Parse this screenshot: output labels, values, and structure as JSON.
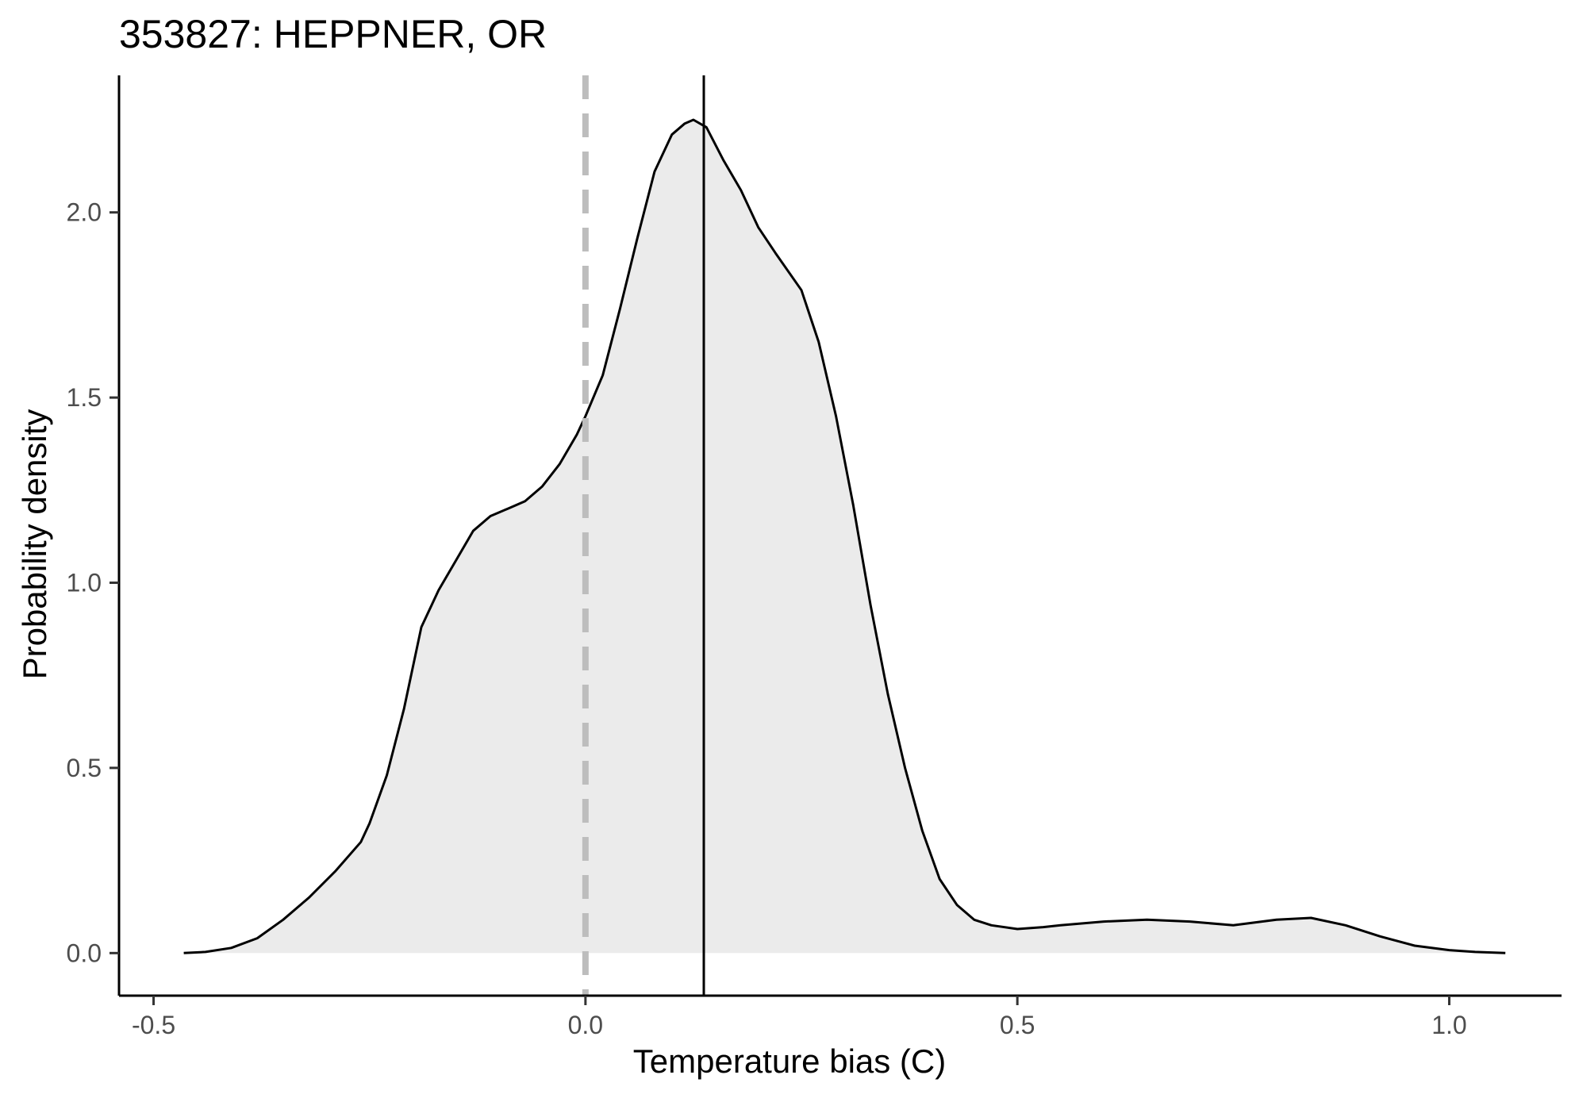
{
  "chart_data": {
    "type": "area",
    "title": "353827: HEPPNER, OR",
    "xlabel": "Temperature bias (C)",
    "ylabel": "Probability density",
    "xlim": [
      -0.54,
      1.13
    ],
    "ylim": [
      -0.115,
      2.37
    ],
    "x_ticks": [
      "-0.5",
      "0.0",
      "0.5",
      "1.0"
    ],
    "y_ticks": [
      "0.0",
      "0.5",
      "1.0",
      "1.5",
      "2.0"
    ],
    "grid": false,
    "reference_lines": [
      {
        "x": 0.0,
        "style": "dashed",
        "color": "#bdbdbd"
      },
      {
        "x": 0.137,
        "style": "solid",
        "color": "#000000"
      }
    ],
    "series": [
      {
        "fill": "#ebebeb",
        "stroke": "#000000",
        "x": [
          -0.465,
          -0.44,
          -0.41,
          -0.38,
          -0.35,
          -0.32,
          -0.29,
          -0.26,
          -0.25,
          -0.23,
          -0.21,
          -0.19,
          -0.17,
          -0.15,
          -0.13,
          -0.11,
          -0.09,
          -0.07,
          -0.05,
          -0.03,
          -0.01,
          0.0,
          0.02,
          0.04,
          0.06,
          0.08,
          0.1,
          0.115,
          0.125,
          0.14,
          0.16,
          0.18,
          0.2,
          0.22,
          0.25,
          0.27,
          0.29,
          0.31,
          0.33,
          0.35,
          0.37,
          0.39,
          0.41,
          0.43,
          0.45,
          0.47,
          0.5,
          0.53,
          0.55,
          0.6,
          0.65,
          0.7,
          0.75,
          0.8,
          0.84,
          0.88,
          0.92,
          0.96,
          1.0,
          1.03,
          1.065
        ],
        "y": [
          0.0,
          0.003,
          0.014,
          0.04,
          0.09,
          0.15,
          0.22,
          0.3,
          0.35,
          0.48,
          0.66,
          0.88,
          0.98,
          1.06,
          1.14,
          1.18,
          1.2,
          1.22,
          1.26,
          1.32,
          1.4,
          1.45,
          1.56,
          1.74,
          1.93,
          2.11,
          2.21,
          2.24,
          2.25,
          2.23,
          2.14,
          2.06,
          1.96,
          1.89,
          1.79,
          1.65,
          1.45,
          1.21,
          0.94,
          0.7,
          0.5,
          0.33,
          0.2,
          0.13,
          0.09,
          0.075,
          0.065,
          0.07,
          0.075,
          0.085,
          0.09,
          0.085,
          0.075,
          0.09,
          0.095,
          0.075,
          0.045,
          0.02,
          0.008,
          0.003,
          0.0
        ]
      }
    ]
  }
}
